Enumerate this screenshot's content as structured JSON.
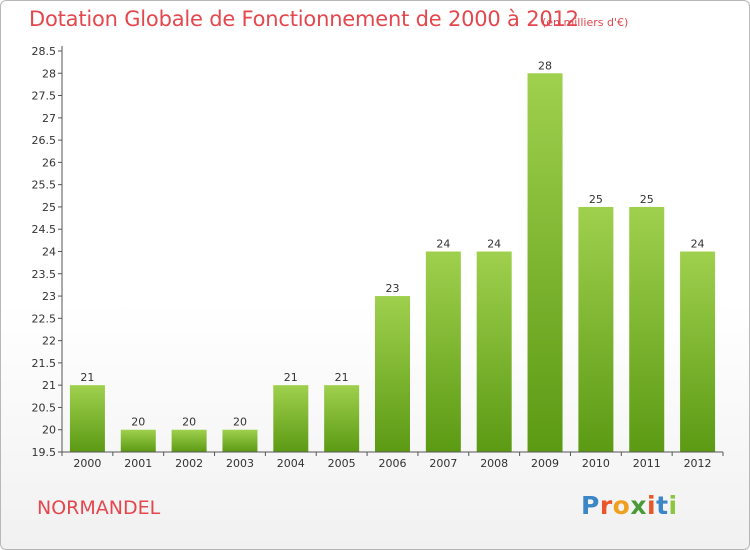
{
  "header": {
    "title": "Dotation Globale de Fonctionnement de 2000 à 2012",
    "unit_note": "(en milliers d'€)"
  },
  "commune_name": "NORMANDEL",
  "logo": {
    "text": "Proxiti",
    "letters": [
      {
        "char": "P",
        "color": "#3b86c6"
      },
      {
        "char": "r",
        "color": "#e8562a"
      },
      {
        "char": "o",
        "color": "#f0a020"
      },
      {
        "char": "x",
        "color": "#4a9a3a"
      },
      {
        "char": "i",
        "color": "#e8562a"
      },
      {
        "char": "t",
        "color": "#3b86c6"
      },
      {
        "char": "i",
        "color": "#8cc63f"
      }
    ]
  },
  "colors": {
    "bar_top": "#9fd04e",
    "bar_bottom": "#5c9a14",
    "title": "#e4474e",
    "grid": "#e6e6e6"
  },
  "chart_data": {
    "type": "bar",
    "title": "Dotation Globale de Fonctionnement de 2000 à 2012",
    "subtitle": "(en milliers d'€)",
    "xlabel": "",
    "ylabel": "",
    "categories": [
      "2000",
      "2001",
      "2002",
      "2003",
      "2004",
      "2005",
      "2006",
      "2007",
      "2008",
      "2009",
      "2010",
      "2011",
      "2012"
    ],
    "values": [
      21,
      20,
      20,
      20,
      21,
      21,
      23,
      24,
      24,
      28,
      25,
      25,
      24
    ],
    "data_labels": [
      "21",
      "20",
      "20",
      "20",
      "21",
      "21",
      "23",
      "24",
      "24",
      "28",
      "25",
      "25",
      "24"
    ],
    "ylim": [
      19.5,
      28.5
    ],
    "yticks": [
      "19.5",
      "20",
      "20.5",
      "21",
      "21.5",
      "22",
      "22.5",
      "23",
      "23.5",
      "24",
      "24.5",
      "25",
      "25.5",
      "26",
      "26.5",
      "27",
      "27.5",
      "28",
      "28.5"
    ],
    "grid": false,
    "legend": "none"
  }
}
